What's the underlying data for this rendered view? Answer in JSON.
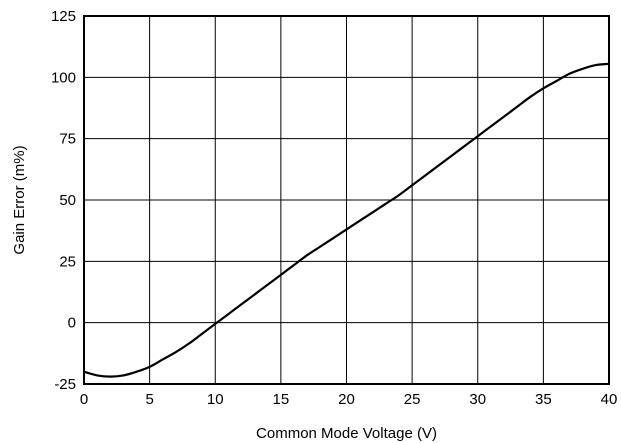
{
  "chart_data": {
    "type": "line",
    "title": "",
    "xlabel": "Common Mode Voltage (V)",
    "ylabel": "Gain Error (m%)",
    "xlim": [
      0,
      40
    ],
    "ylim": [
      -25,
      125
    ],
    "xticks": [
      0,
      5,
      10,
      15,
      20,
      25,
      30,
      35,
      40
    ],
    "yticks": [
      -25,
      0,
      25,
      50,
      75,
      100,
      125
    ],
    "xtick_labels": [
      "0",
      "5",
      "10",
      "15",
      "20",
      "25",
      "30",
      "35",
      "40"
    ],
    "ytick_labels": [
      "-25",
      "0",
      "25",
      "50",
      "75",
      "100",
      "125"
    ],
    "grid": true,
    "legend": "none",
    "series": [
      {
        "color": "#000000",
        "x": [
          0,
          1,
          2,
          3,
          4,
          5,
          6,
          7,
          8,
          9,
          10,
          11,
          12,
          13,
          14,
          15,
          16,
          17,
          18,
          19,
          20,
          21,
          22,
          23,
          24,
          25,
          26,
          27,
          28,
          29,
          30,
          31,
          32,
          33,
          34,
          35,
          36,
          37,
          38,
          39,
          40
        ],
        "y": [
          -20,
          -21.5,
          -22,
          -21.5,
          -20,
          -18,
          -15,
          -12,
          -8.5,
          -4.5,
          -0.5,
          3.5,
          7.5,
          11.5,
          15.5,
          19.5,
          23.5,
          27.5,
          31,
          34.5,
          38,
          41.5,
          45,
          48.5,
          52,
          56,
          60,
          64,
          68,
          72,
          76,
          80,
          84,
          88,
          92,
          95.5,
          98.5,
          101.5,
          103.5,
          105,
          105.5
        ]
      }
    ]
  }
}
